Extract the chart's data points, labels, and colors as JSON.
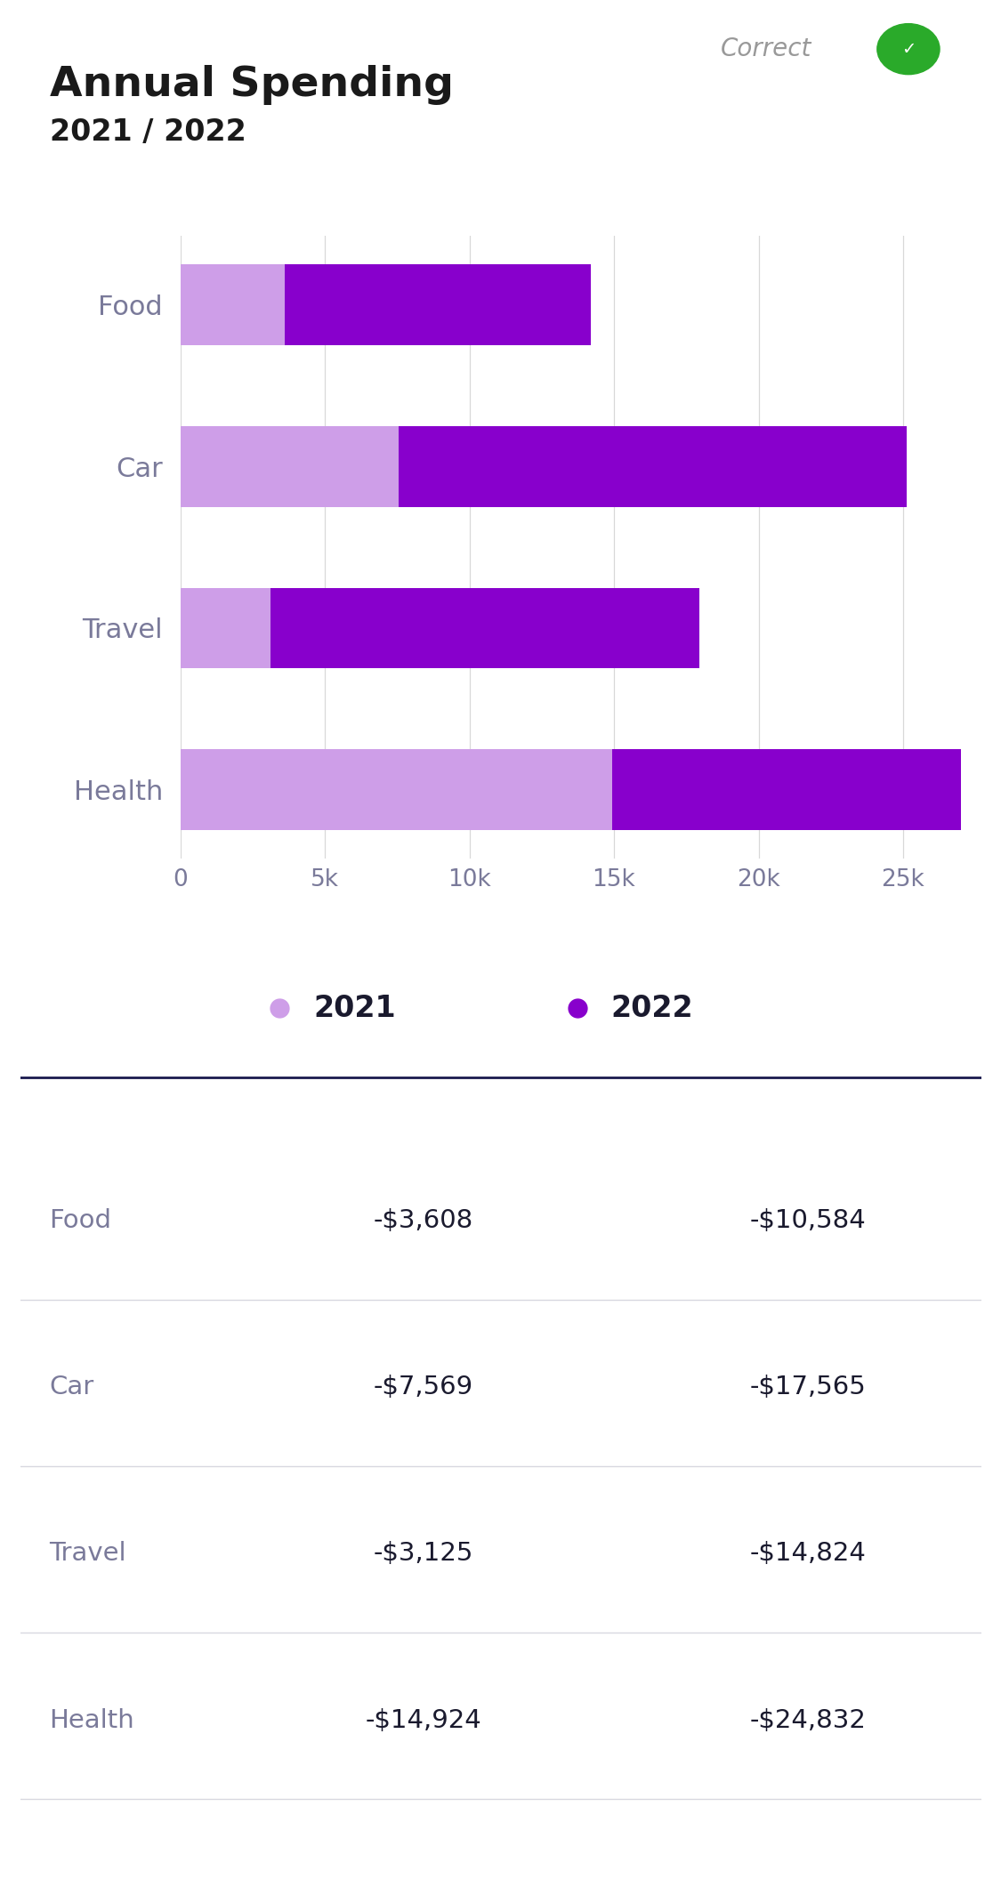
{
  "title": "Annual Spending",
  "subtitle": "2021 / 2022",
  "categories": [
    "Food",
    "Car",
    "Travel",
    "Health"
  ],
  "values_2021": [
    3608,
    7569,
    3125,
    14924
  ],
  "values_2022": [
    10584,
    17565,
    14824,
    24832
  ],
  "color_2021": "#ce9ee8",
  "color_2022": "#8800cc",
  "legend_2021": "2021",
  "legend_2022": "2022",
  "table_rows": [
    [
      "Food",
      "-$3,608",
      "-$10,584"
    ],
    [
      "Car",
      "-$7,569",
      "-$17,565"
    ],
    [
      "Travel",
      "-$3,125",
      "-$14,824"
    ],
    [
      "Health",
      "-$14,924",
      "-$24,832"
    ]
  ],
  "correct_label": "Correct",
  "correct_color": "#2aaa2a",
  "background_color": "#ffffff",
  "title_color": "#1a1a1a",
  "axis_label_color": "#7a7a9a",
  "table_label_color": "#7a7a9a",
  "table_value_color": "#1a1a2e",
  "header_line_color": "#1a1a4e",
  "divider_color": "#d8d8e0",
  "xmax": 27000,
  "xticks": [
    0,
    5000,
    10000,
    15000,
    20000,
    25000
  ],
  "xtick_labels": [
    "0",
    "5k",
    "10k",
    "15k",
    "20k",
    "25k"
  ]
}
